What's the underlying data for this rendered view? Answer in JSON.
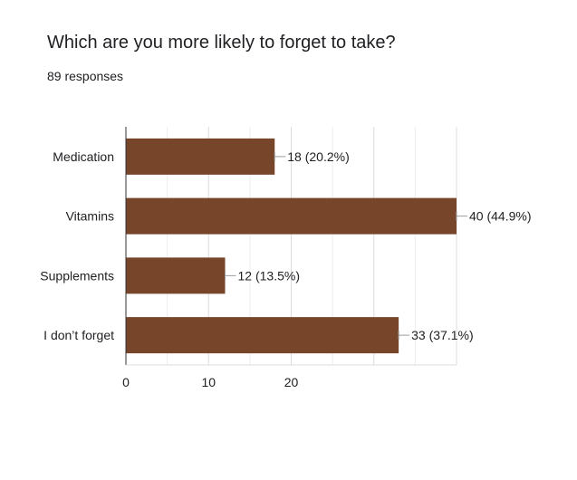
{
  "chart_data": {
    "type": "bar",
    "orientation": "horizontal",
    "title": "Which are you more likely to forget to take?",
    "subtitle": "89 responses",
    "categories": [
      "Medication",
      "Vitamins",
      "Supplements",
      "I don’t forget"
    ],
    "values": [
      18,
      40,
      12,
      33
    ],
    "labels": [
      "18 (20.2%)",
      "40 (44.9%)",
      "12 (13.5%)",
      "33 (37.1%)"
    ],
    "xlim": [
      0,
      40
    ],
    "xticks": [
      0,
      10,
      20
    ],
    "grid": true,
    "bar_color": "#774529"
  }
}
